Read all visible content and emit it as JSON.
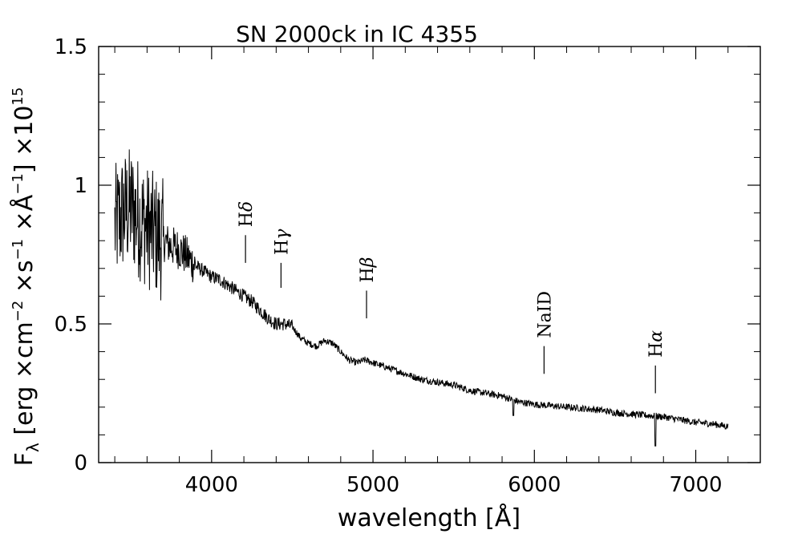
{
  "chart_data": {
    "type": "line",
    "title": "SN 2000ck in IC 4355",
    "xlabel": "wavelength [Å]",
    "ylabel": "F_λ [erg ×cm^-2 ×s^-1 ×Å^-1] ×10^15",
    "ylabel_parts": {
      "f": "F",
      "lambda": "λ",
      "bracket_open": "[erg ×cm",
      "sup1": "−2",
      "mid1": " ×s",
      "sup2": "−1",
      "mid2": " ×Å",
      "sup3": "−1",
      "bracket_close": "] ×10",
      "sup4": "15"
    },
    "xlim": [
      3300,
      7400
    ],
    "ylim": [
      0,
      1.5
    ],
    "x_ticks": [
      4000,
      5000,
      6000,
      7000
    ],
    "x_tick_labels": [
      "4000",
      "5000",
      "6000",
      "7000"
    ],
    "y_ticks": [
      0,
      0.5,
      1,
      1.5
    ],
    "y_tick_labels": [
      "0",
      "0.5",
      "1",
      "1.5"
    ],
    "grid": false,
    "series": [
      {
        "x": [
          3400,
          3450,
          3500,
          3550,
          3600,
          3650,
          3700,
          3750,
          3800,
          3850,
          3900,
          3950,
          4000,
          4050,
          4100,
          4150,
          4200,
          4250,
          4300,
          4350,
          4400,
          4450,
          4500,
          4550,
          4600,
          4650,
          4700,
          4750,
          4800,
          4850,
          4900,
          4950,
          5000,
          5100,
          5200,
          5300,
          5400,
          5500,
          5600,
          5700,
          5800,
          5900,
          6000,
          6100,
          6200,
          6300,
          6400,
          6500,
          6600,
          6700,
          6800,
          6900,
          7000,
          7100,
          7200
        ],
        "y": [
          0.85,
          0.9,
          0.92,
          0.88,
          0.85,
          0.82,
          0.8,
          0.78,
          0.77,
          0.74,
          0.71,
          0.69,
          0.67,
          0.66,
          0.64,
          0.62,
          0.6,
          0.58,
          0.55,
          0.52,
          0.5,
          0.5,
          0.49,
          0.45,
          0.43,
          0.42,
          0.44,
          0.43,
          0.4,
          0.37,
          0.36,
          0.37,
          0.36,
          0.34,
          0.32,
          0.3,
          0.29,
          0.28,
          0.26,
          0.25,
          0.24,
          0.22,
          0.21,
          0.205,
          0.2,
          0.195,
          0.19,
          0.18,
          0.175,
          0.17,
          0.165,
          0.155,
          0.145,
          0.14,
          0.13
        ]
      }
    ],
    "annotations": [
      {
        "label_base": "H",
        "label_greek": "δ",
        "x": 4210,
        "y0": 0.72,
        "y1": 0.82
      },
      {
        "label_base": "H",
        "label_greek": "γ",
        "x": 4430,
        "y0": 0.63,
        "y1": 0.72
      },
      {
        "label_base": "H",
        "label_greek": "β",
        "x": 4960,
        "y0": 0.52,
        "y1": 0.62
      },
      {
        "label_base": "NaID",
        "label_greek": "",
        "x": 6060,
        "y0": 0.32,
        "y1": 0.42
      },
      {
        "label_base": "H",
        "label_greek": "α",
        "x": 6750,
        "y0": 0.25,
        "y1": 0.35
      }
    ]
  }
}
